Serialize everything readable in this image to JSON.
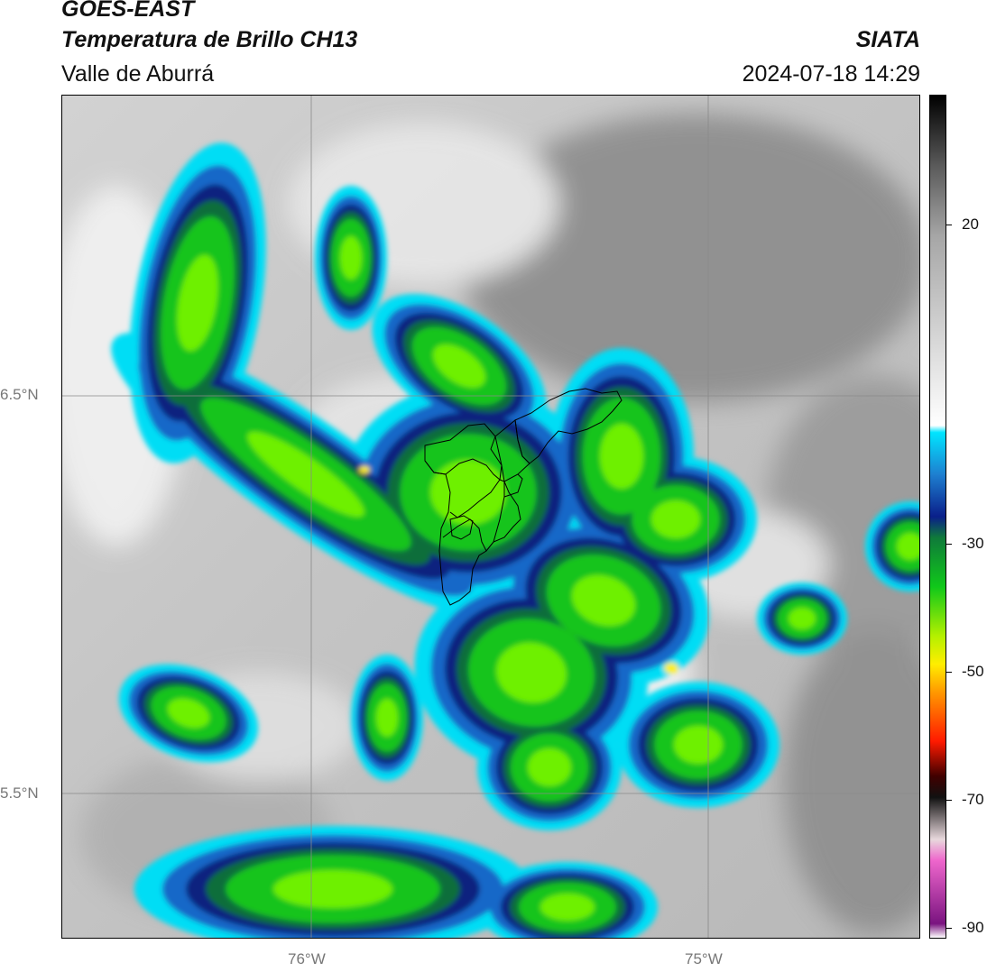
{
  "header": {
    "satellite": "GOES-EAST",
    "product": "Temperatura de Brillo CH13",
    "region": "Valle de Aburrá",
    "organization": "SIATA",
    "datetime": "2024-07-18 14:29"
  },
  "axes": {
    "lat_labels": [
      "6.5°N",
      "5.5°N"
    ],
    "lon_labels": [
      "76°W",
      "75°W"
    ]
  },
  "colorbar": {
    "labels": [
      "20",
      "-30",
      "-50",
      "-70",
      "-90"
    ],
    "stops": [
      {
        "value": 30,
        "color": "#000000"
      },
      {
        "value": 20,
        "color": "#5a5a5a"
      },
      {
        "value": 10,
        "color": "#a6a6a6"
      },
      {
        "value": -17,
        "color": "#ffffff"
      },
      {
        "value": -18,
        "color": "#00e5ff"
      },
      {
        "value": -24,
        "color": "#1e7fd0"
      },
      {
        "value": -30,
        "color": "#0a1f8a"
      },
      {
        "value": -33,
        "color": "#0f7a3a"
      },
      {
        "value": -40,
        "color": "#10c81a"
      },
      {
        "value": -47,
        "color": "#b4f000"
      },
      {
        "value": -51,
        "color": "#ffee00"
      },
      {
        "value": -55,
        "color": "#ff9900"
      },
      {
        "value": -62,
        "color": "#ff1a00"
      },
      {
        "value": -67,
        "color": "#400000"
      },
      {
        "value": -70,
        "color": "#111111"
      },
      {
        "value": -76,
        "color": "#e8d8dc"
      },
      {
        "value": -79,
        "color": "#ee66cc"
      },
      {
        "value": -88,
        "color": "#7a1480"
      },
      {
        "value": -90,
        "color": "#ffffff"
      }
    ]
  },
  "colors": {
    "cloud_free": "#8c8c8c",
    "cloud_top_warm": "#eeeeee",
    "cyan": "#00ddf5",
    "blue": "#1868c8",
    "navy": "#07207f",
    "dark_green": "#0d6e3a",
    "green": "#19c41e",
    "bright_green": "#6ef000",
    "yellow": "#ffee00",
    "border_line": "#000000",
    "grid_line": "#8a8a8a"
  }
}
